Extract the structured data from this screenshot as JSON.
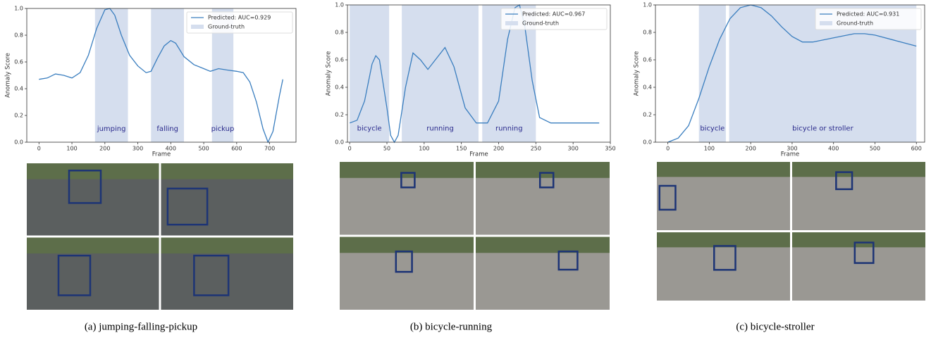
{
  "chart_data": [
    {
      "type": "line",
      "xlabel": "Frame",
      "ylabel": "Anomaly Score",
      "caption": "(a) jumping-falling-pickup",
      "xlim": [
        -37,
        780
      ],
      "ylim": [
        0,
        1
      ],
      "xticks": [
        0,
        100,
        200,
        300,
        400,
        500,
        600,
        700
      ],
      "yticks": [
        {
          "value": 0,
          "label": "0.0"
        },
        0.2,
        0.4,
        0.6,
        0.8,
        {
          "value": 1,
          "label": "1.0"
        }
      ],
      "legend": "upper right",
      "x": [
        0,
        25,
        50,
        75,
        100,
        125,
        150,
        175,
        200,
        215,
        230,
        250,
        275,
        300,
        325,
        340,
        360,
        380,
        400,
        415,
        440,
        470,
        500,
        520,
        545,
        570,
        600,
        620,
        640,
        660,
        680,
        695,
        710,
        730,
        740
      ],
      "series": [
        {
          "name": "Predicted: AUC=0.929",
          "color": "#3a7ebf",
          "values": [
            0.47,
            0.48,
            0.51,
            0.5,
            0.48,
            0.52,
            0.65,
            0.85,
            0.99,
            1.0,
            0.95,
            0.8,
            0.65,
            0.57,
            0.52,
            0.53,
            0.63,
            0.72,
            0.76,
            0.74,
            0.64,
            0.58,
            0.55,
            0.53,
            0.55,
            0.54,
            0.53,
            0.52,
            0.45,
            0.3,
            0.1,
            0.0,
            0.08,
            0.35,
            0.47
          ]
        }
      ],
      "ground_truth": {
        "name": "Ground-truth",
        "color": "#d5deee",
        "regions": [
          {
            "start": 170,
            "end": 270,
            "label": "jumping"
          },
          {
            "start": 340,
            "end": 440,
            "label": "falling"
          },
          {
            "start": 525,
            "end": 590,
            "label": "pickup"
          }
        ]
      }
    },
    {
      "type": "line",
      "xlabel": "Frame",
      "ylabel": "Anomaly Score",
      "caption": "(b) bicycle-running",
      "xlim": [
        -3,
        350
      ],
      "ylim": [
        0,
        1
      ],
      "xticks": [
        0,
        50,
        100,
        150,
        200,
        250,
        300,
        350
      ],
      "yticks": [
        {
          "value": 0,
          "label": "0.0"
        },
        0.2,
        0.4,
        0.6,
        0.8,
        {
          "value": 1,
          "label": "1.0"
        }
      ],
      "legend": "upper right",
      "x": [
        0,
        10,
        20,
        30,
        35,
        40,
        50,
        55,
        60,
        65,
        75,
        85,
        95,
        105,
        115,
        128,
        140,
        155,
        170,
        185,
        200,
        212,
        222,
        228,
        235,
        245,
        255,
        270,
        300,
        335
      ],
      "series": [
        {
          "name": "Predicted: AUC=0.967",
          "color": "#3a7ebf",
          "values": [
            0.14,
            0.16,
            0.3,
            0.57,
            0.63,
            0.6,
            0.25,
            0.05,
            0.0,
            0.05,
            0.4,
            0.65,
            0.6,
            0.53,
            0.6,
            0.69,
            0.55,
            0.25,
            0.14,
            0.14,
            0.3,
            0.75,
            0.98,
            1.0,
            0.85,
            0.45,
            0.18,
            0.14,
            0.14,
            0.14
          ]
        }
      ],
      "ground_truth": {
        "name": "Ground-truth",
        "color": "#d5deee",
        "regions": [
          {
            "start": 0,
            "end": 53,
            "label": "bicycle"
          },
          {
            "start": 70,
            "end": 173,
            "label": "running"
          },
          {
            "start": 178,
            "end": 250,
            "label": "running"
          }
        ]
      }
    },
    {
      "type": "line",
      "xlabel": "Frame",
      "ylabel": "Anomaly Score",
      "caption": "(c) bicycle-stroller",
      "xlim": [
        -30,
        620
      ],
      "ylim": [
        0,
        1
      ],
      "xticks": [
        0,
        100,
        200,
        300,
        400,
        500,
        600
      ],
      "yticks": [
        {
          "value": 0,
          "label": "0.0"
        },
        0.2,
        0.4,
        0.6,
        0.8,
        {
          "value": 1,
          "label": "1.0"
        }
      ],
      "legend": "upper right",
      "x": [
        0,
        25,
        50,
        75,
        100,
        125,
        150,
        175,
        200,
        225,
        250,
        275,
        300,
        325,
        350,
        400,
        450,
        475,
        500,
        550,
        600
      ],
      "series": [
        {
          "name": "Predicted: AUC=0.931",
          "color": "#3a7ebf",
          "values": [
            0.0,
            0.03,
            0.12,
            0.32,
            0.55,
            0.75,
            0.9,
            0.98,
            1.0,
            0.98,
            0.92,
            0.84,
            0.77,
            0.73,
            0.73,
            0.76,
            0.79,
            0.79,
            0.78,
            0.74,
            0.7
          ]
        }
      ],
      "ground_truth": {
        "name": "Ground-truth",
        "color": "#d5deee",
        "regions": [
          {
            "start": 75,
            "end": 140,
            "label": "bicycle"
          },
          {
            "start": 148,
            "end": 600,
            "label": "bicycle or stroller"
          }
        ]
      }
    }
  ]
}
